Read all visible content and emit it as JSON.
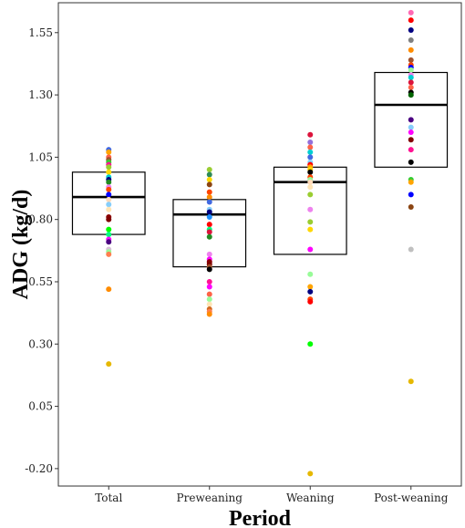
{
  "chart_data": {
    "type": "boxplot",
    "xlabel": "Period",
    "ylabel": "ADG (kg/d)",
    "ylim": [
      -0.27,
      1.67
    ],
    "yticks": [
      -0.2,
      0.05,
      0.3,
      0.55,
      0.8,
      1.05,
      1.3,
      1.55
    ],
    "ytick_labels": [
      "-0.20",
      "0.05",
      "0.30",
      "0.55",
      "0.80",
      "1.05",
      "1.30",
      "1.55"
    ],
    "grid": false,
    "legend": "none",
    "categories": [
      "Total",
      "Preweaning",
      "Weaning",
      "Post-weaning"
    ],
    "boxes": [
      {
        "category": "Total",
        "q1": 0.74,
        "median": 0.89,
        "q3": 0.99
      },
      {
        "category": "Preweaning",
        "q1": 0.61,
        "median": 0.82,
        "q3": 0.88
      },
      {
        "category": "Weaning",
        "q1": 0.66,
        "median": 0.95,
        "q3": 1.01
      },
      {
        "category": "Post-weaning",
        "q1": 1.01,
        "median": 1.26,
        "q3": 1.39
      }
    ],
    "points": [
      {
        "category": "Total",
        "values": [
          1.08,
          1.07,
          1.05,
          1.04,
          1.03,
          1.02,
          1.01,
          0.99,
          0.97,
          0.96,
          0.95,
          0.93,
          0.92,
          0.9,
          0.88,
          0.86,
          0.84,
          0.81,
          0.8,
          0.76,
          0.74,
          0.72,
          0.71,
          0.68,
          0.67,
          0.66,
          0.52,
          0.22
        ],
        "colors": [
          "#4169e1",
          "#ffa500",
          "#ff6347",
          "#a0522d",
          "#32cd32",
          "#ff1493",
          "#9acd32",
          "#ffd700",
          "#00ced1",
          "#000080",
          "#228b22",
          "#ee82ee",
          "#ff4500",
          "#0000ff",
          "#ffdab9",
          "#87cefa",
          "#ffe4b5",
          "#8b0000",
          "#800000",
          "#00ff00",
          "#00ff7f",
          "#ff00ff",
          "#4b0082",
          "#d8bfd8",
          "#98fb98",
          "#ff7f50",
          "#ff8c00",
          "#e6b800"
        ]
      },
      {
        "category": "Preweaning",
        "values": [
          1.0,
          0.98,
          0.96,
          0.94,
          0.91,
          0.89,
          0.87,
          0.84,
          0.83,
          0.81,
          0.78,
          0.76,
          0.75,
          0.73,
          0.66,
          0.64,
          0.63,
          0.62,
          0.61,
          0.6,
          0.55,
          0.53,
          0.5,
          0.48,
          0.46,
          0.44,
          0.43,
          0.42
        ],
        "colors": [
          "#9acd32",
          "#2e8b57",
          "#ffd700",
          "#8b4513",
          "#ff4500",
          "#ff8c00",
          "#4169e1",
          "#87cefa",
          "#000080",
          "#1e90ff",
          "#ff0000",
          "#00ff7f",
          "#dc143c",
          "#228b22",
          "#ee82ee",
          "#ff00ff",
          "#8b0000",
          "#800000",
          "#a0522d",
          "#000000",
          "#ff1493",
          "#ff00ff",
          "#ff6347",
          "#98fb98",
          "#ffe4b5",
          "#d2691e",
          "#ff7f50",
          "#ff8c00"
        ]
      },
      {
        "category": "Weaning",
        "values": [
          1.14,
          1.11,
          1.09,
          1.07,
          1.05,
          1.03,
          1.02,
          1.01,
          1.0,
          0.99,
          0.97,
          0.96,
          0.95,
          0.93,
          0.9,
          0.84,
          0.79,
          0.76,
          0.68,
          0.58,
          0.53,
          0.51,
          0.48,
          0.47,
          0.3,
          -0.22
        ],
        "colors": [
          "#dc143c",
          "#9370db",
          "#ff6347",
          "#00ced1",
          "#4169e1",
          "#87cefa",
          "#ff0000",
          "#ffa500",
          "#ffd700",
          "#000000",
          "#ff4500",
          "#98fb98",
          "#ffdab9",
          "#ffe4b5",
          "#9acd32",
          "#ee82ee",
          "#9acd32",
          "#ffd700",
          "#ff00ff",
          "#98fb98",
          "#ffa500",
          "#000080",
          "#ff4500",
          "#ff0000",
          "#00ff00",
          "#e6b800"
        ]
      },
      {
        "category": "Post-weaning",
        "values": [
          1.63,
          1.6,
          1.56,
          1.52,
          1.48,
          1.44,
          1.42,
          1.41,
          1.4,
          1.38,
          1.37,
          1.35,
          1.33,
          1.31,
          1.3,
          1.2,
          1.17,
          1.15,
          1.12,
          1.08,
          1.03,
          0.96,
          0.95,
          0.9,
          0.85,
          0.68,
          0.15
        ],
        "colors": [
          "#ff69b4",
          "#ff0000",
          "#000080",
          "#808080",
          "#ff8c00",
          "#a0522d",
          "#ff4500",
          "#0000ff",
          "#98fb98",
          "#ee82ee",
          "#00ced1",
          "#dc143c",
          "#ff6347",
          "#000000",
          "#006400",
          "#4b0082",
          "#87cefa",
          "#ff00ff",
          "#800000",
          "#ff1493",
          "#000000",
          "#32cd32",
          "#ffa500",
          "#0000ff",
          "#8b4513",
          "#c0c0c0",
          "#e6b800"
        ]
      }
    ]
  }
}
